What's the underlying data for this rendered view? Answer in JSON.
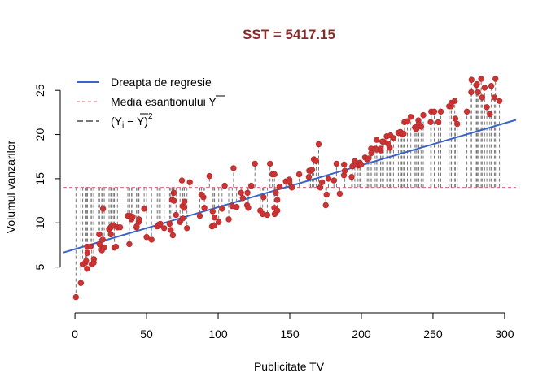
{
  "chart_data": {
    "type": "scatter",
    "title": "SST = 5417.15",
    "xlabel": "Publicitate TV",
    "ylabel": "Volumul vanzarilor",
    "xlim": [
      -8,
      308
    ],
    "ylim": [
      0,
      27.5
    ],
    "x_ticks": [
      "0",
      "50",
      "100",
      "150",
      "200",
      "250",
      "300"
    ],
    "y_ticks": [
      "5",
      "10",
      "15",
      "20",
      "25"
    ],
    "mean_y": 14.02,
    "regression": {
      "intercept": 7.03,
      "slope": 0.0475
    },
    "legend": {
      "position": "top-left",
      "entries": [
        {
          "label": "Dreapta de regresie",
          "color": "#3a64c8",
          "style": "solid"
        },
        {
          "label": "Media esantionului Y",
          "color": "#e06070",
          "style": "dashed"
        },
        {
          "label": "(Y",
          "sub": "i",
          "mid": " − Y",
          "close": ")",
          "sup": "2",
          "color": "#777777",
          "style": "longdash"
        }
      ]
    },
    "colors": {
      "points": "#cc3333",
      "regression": "#3a64c8",
      "mean": "#e06070",
      "residual": "#777777"
    },
    "x": [
      0.7,
      4.1,
      5.4,
      7.3,
      7.8,
      8.4,
      8.6,
      8.7,
      10.8,
      11.7,
      13.1,
      13.2,
      16.9,
      17.2,
      18.7,
      18.8,
      19.4,
      19.6,
      20.5,
      23.8,
      25.0,
      25.1,
      25.6,
      26.8,
      27.5,
      28.6,
      29.7,
      31.5,
      36.9,
      38.0,
      38.2,
      39.5,
      40.3,
      43.0,
      43.1,
      44.5,
      44.7,
      48.3,
      50.0,
      53.5,
      57.5,
      58.6,
      59.6,
      62.3,
      66.1,
      66.9,
      67.8,
      68.4,
      69.0,
      69.2,
      70.6,
      73.4,
      74.7,
      75.1,
      75.3,
      76.3,
      76.4,
      78.2,
      80.2,
      87.2,
      88.3,
      89.7,
      90.4,
      93.9,
      95.7,
      96.2,
      97.2,
      97.5,
      100.4,
      102.7,
      104.6,
      107.4,
      109.8,
      110.7,
      112.9,
      116.0,
      117.2,
      120.2,
      120.5,
      121.0,
      123.1,
      125.7,
      129.4,
      131.1,
      131.7,
      134.3,
      136.2,
      137.9,
      139.2,
      139.3,
      139.5,
      140.3,
      141.3,
      141.3,
      142.9,
      147.3,
      149.7,
      149.8,
      151.5,
      156.6,
      163.3,
      163.5,
      164.5,
      165.6,
      166.8,
      168.4,
      170.2,
      171.3,
      172.5,
      175.1,
      175.7,
      177.0,
      180.8,
      182.6,
      184.9,
      187.8,
      187.9,
      188.4,
      193.2,
      193.7,
      195.4,
      197.6,
      198.9,
      199.1,
      199.8,
      202.5,
      204.1,
      205.0,
      206.8,
      206.9,
      209.6,
      210.7,
      210.8,
      213.4,
      213.5,
      214.7,
      215.4,
      217.7,
      218.4,
      219.8,
      220.3,
      222.4,
      225.8,
      227.2,
      228.0,
      228.3,
      229.5,
      230.1,
      232.1,
      234.5,
      237.4,
      238.2,
      239.3,
      239.8,
      240.1,
      241.7,
      243.2,
      248.4,
      248.8,
      250.9,
      253.8,
      255.4,
      261.3,
      262.7,
      262.9,
      265.2,
      265.6,
      266.9,
      273.7,
      276.7,
      276.9,
      280.2,
      280.7,
      281.4,
      283.6,
      284.3,
      286.0,
      287.6,
      289.7,
      290.7,
      292.9,
      293.6,
      296.4
    ],
    "y": [
      1.6,
      3.2,
      5.3,
      5.5,
      5.7,
      4.8,
      7.3,
      6.6,
      7.3,
      5.3,
      5.5,
      5.9,
      8.7,
      7.6,
      7.0,
      6.9,
      8.1,
      11.6,
      7.2,
      9.3,
      9.5,
      8.7,
      9.6,
      9.7,
      7.2,
      7.3,
      9.5,
      9.5,
      10.8,
      7.6,
      10.8,
      10.4,
      10.7,
      9.5,
      9.6,
      10.1,
      10.4,
      11.6,
      8.4,
      8.1,
      9.6,
      9.7,
      9.9,
      9.4,
      9.9,
      9.2,
      12.6,
      8.6,
      13.4,
      12.5,
      10.9,
      10.1,
      14.8,
      11.9,
      10.5,
      11.7,
      12.4,
      9.4,
      14.6,
      10.8,
      13.2,
      12.9,
      11.7,
      15.3,
      9.6,
      11.3,
      9.7,
      10.6,
      10.1,
      11.6,
      14.2,
      10.4,
      11.9,
      16.2,
      11.8,
      13.4,
      12.8,
      12.0,
      13.4,
      11.7,
      14.2,
      16.7,
      11.4,
      11.0,
      12.9,
      10.9,
      16.7,
      15.5,
      11.7,
      15.5,
      11.0,
      13.4,
      12.6,
      11.4,
      14.1,
      14.7,
      14.9,
      14.6,
      14.0,
      15.5,
      15.2,
      15.9,
      15.9,
      16.0,
      17.2,
      17.0,
      18.9,
      14.0,
      14.6,
      12.0,
      13.2,
      15.0,
      14.8,
      16.7,
      13.3,
      15.4,
      16.6,
      15.9,
      15.2,
      16.4,
      17.0,
      16.5,
      16.8,
      16.6,
      16.6,
      17.4,
      17.2,
      17.3,
      18.4,
      17.9,
      18.4,
      19.4,
      18.3,
      18.2,
      18.4,
      19.2,
      19.2,
      19.8,
      19.0,
      18.5,
      19.9,
      19.6,
      20.2,
      20.3,
      20.1,
      20.0,
      20.1,
      21.4,
      21.5,
      22.0,
      20.8,
      20.6,
      21.0,
      21.6,
      21.2,
      20.9,
      22.2,
      21.4,
      22.6,
      22.6,
      21.4,
      22.6,
      23.2,
      23.2,
      23.6,
      23.8,
      21.8,
      21.2,
      22.6,
      24.8,
      26.2,
      25.6,
      25.7,
      24.8,
      26.3,
      24.2,
      25.3,
      23.1,
      22.3,
      25.5,
      24.2,
      26.3,
      23.8
    ],
    "points": [
      [
        0.7,
        1.6
      ],
      [
        4.1,
        3.2
      ],
      [
        5.4,
        5.3
      ],
      [
        7.3,
        5.5
      ],
      [
        7.8,
        5.7
      ],
      [
        8.4,
        4.8
      ],
      [
        8.6,
        7.3
      ],
      [
        8.7,
        6.6
      ],
      [
        10.8,
        7.3
      ],
      [
        11.7,
        5.3
      ],
      [
        13.1,
        5.5
      ],
      [
        13.2,
        5.9
      ],
      [
        16.9,
        8.7
      ],
      [
        17.2,
        7.6
      ],
      [
        18.7,
        7.0
      ],
      [
        18.8,
        6.9
      ],
      [
        19.4,
        8.1
      ],
      [
        19.6,
        11.6
      ],
      [
        20.5,
        7.2
      ],
      [
        23.8,
        9.3
      ],
      [
        25.0,
        9.5
      ],
      [
        25.1,
        8.7
      ],
      [
        25.6,
        9.6
      ],
      [
        26.8,
        9.7
      ],
      [
        27.5,
        7.2
      ],
      [
        28.6,
        7.3
      ],
      [
        29.7,
        9.5
      ],
      [
        31.5,
        9.5
      ],
      [
        36.9,
        10.8
      ],
      [
        38.0,
        7.6
      ],
      [
        38.2,
        10.8
      ],
      [
        39.5,
        10.4
      ],
      [
        40.3,
        10.7
      ],
      [
        43.0,
        9.5
      ],
      [
        43.1,
        9.6
      ],
      [
        44.5,
        10.1
      ],
      [
        44.7,
        10.4
      ],
      [
        48.3,
        11.6
      ],
      [
        50.0,
        8.4
      ],
      [
        53.5,
        8.1
      ],
      [
        57.5,
        9.6
      ],
      [
        58.6,
        9.7
      ],
      [
        59.6,
        9.9
      ],
      [
        62.3,
        9.4
      ],
      [
        66.1,
        9.9
      ],
      [
        66.9,
        9.2
      ],
      [
        67.8,
        12.6
      ],
      [
        68.4,
        8.6
      ],
      [
        69.0,
        13.4
      ],
      [
        69.2,
        12.5
      ],
      [
        70.6,
        10.9
      ],
      [
        73.4,
        10.1
      ],
      [
        74.7,
        14.8
      ],
      [
        75.1,
        11.9
      ],
      [
        75.3,
        10.5
      ],
      [
        76.3,
        11.7
      ],
      [
        76.4,
        12.4
      ],
      [
        78.2,
        9.4
      ],
      [
        80.2,
        14.6
      ],
      [
        87.2,
        10.8
      ],
      [
        88.3,
        13.2
      ],
      [
        89.7,
        12.9
      ],
      [
        90.4,
        11.7
      ],
      [
        93.9,
        15.3
      ],
      [
        95.7,
        9.6
      ],
      [
        96.2,
        11.3
      ],
      [
        97.2,
        9.7
      ],
      [
        97.5,
        10.6
      ],
      [
        100.4,
        10.1
      ],
      [
        102.7,
        11.6
      ],
      [
        104.6,
        14.2
      ],
      [
        107.4,
        10.4
      ],
      [
        109.8,
        11.9
      ],
      [
        110.7,
        16.2
      ],
      [
        112.9,
        11.8
      ],
      [
        116.0,
        13.4
      ],
      [
        117.2,
        12.8
      ],
      [
        120.2,
        12.0
      ],
      [
        120.5,
        13.4
      ],
      [
        121.0,
        11.7
      ],
      [
        123.1,
        14.2
      ],
      [
        125.7,
        16.7
      ],
      [
        129.4,
        11.4
      ],
      [
        131.1,
        11.0
      ],
      [
        131.7,
        12.9
      ],
      [
        134.3,
        10.9
      ],
      [
        136.2,
        16.7
      ],
      [
        137.9,
        15.5
      ],
      [
        139.2,
        11.7
      ],
      [
        139.3,
        15.5
      ],
      [
        139.5,
        11.0
      ],
      [
        140.3,
        13.4
      ],
      [
        141.3,
        12.6
      ],
      [
        141.3,
        11.4
      ],
      [
        142.9,
        14.1
      ],
      [
        147.3,
        14.7
      ],
      [
        149.7,
        14.9
      ],
      [
        149.8,
        14.6
      ],
      [
        151.5,
        14.0
      ],
      [
        156.6,
        15.5
      ],
      [
        163.3,
        15.2
      ],
      [
        163.5,
        15.9
      ],
      [
        164.5,
        15.9
      ],
      [
        165.6,
        16.0
      ],
      [
        166.8,
        17.2
      ],
      [
        168.4,
        17.0
      ],
      [
        170.2,
        18.9
      ],
      [
        171.3,
        14.0
      ],
      [
        172.5,
        14.6
      ],
      [
        175.1,
        12.0
      ],
      [
        175.7,
        13.2
      ],
      [
        177.0,
        15.0
      ],
      [
        180.8,
        14.8
      ],
      [
        182.6,
        16.7
      ],
      [
        184.9,
        13.3
      ],
      [
        187.8,
        15.4
      ],
      [
        187.9,
        16.6
      ],
      [
        188.4,
        15.9
      ],
      [
        193.2,
        15.2
      ],
      [
        193.7,
        16.4
      ],
      [
        195.4,
        17.0
      ],
      [
        197.6,
        16.5
      ],
      [
        198.9,
        16.8
      ],
      [
        199.1,
        16.6
      ],
      [
        199.8,
        16.6
      ],
      [
        202.5,
        17.4
      ],
      [
        204.1,
        17.2
      ],
      [
        205.0,
        17.3
      ],
      [
        206.8,
        18.4
      ],
      [
        206.9,
        17.9
      ],
      [
        209.6,
        18.4
      ],
      [
        210.7,
        19.4
      ],
      [
        210.8,
        18.3
      ],
      [
        213.4,
        18.2
      ],
      [
        213.5,
        18.4
      ],
      [
        214.7,
        19.2
      ],
      [
        215.4,
        19.2
      ],
      [
        217.7,
        19.8
      ],
      [
        218.4,
        19.0
      ],
      [
        219.8,
        18.5
      ],
      [
        220.3,
        19.9
      ],
      [
        222.4,
        19.6
      ],
      [
        225.8,
        20.2
      ],
      [
        227.2,
        20.3
      ],
      [
        228.0,
        20.1
      ],
      [
        228.3,
        20.0
      ],
      [
        229.5,
        20.1
      ],
      [
        230.1,
        21.4
      ],
      [
        232.1,
        21.5
      ],
      [
        234.5,
        22.0
      ],
      [
        237.4,
        20.8
      ],
      [
        238.2,
        20.6
      ],
      [
        239.3,
        21.0
      ],
      [
        239.8,
        21.6
      ],
      [
        240.1,
        21.2
      ],
      [
        241.7,
        20.9
      ],
      [
        243.2,
        22.2
      ],
      [
        248.4,
        21.4
      ],
      [
        248.8,
        22.6
      ],
      [
        250.9,
        22.6
      ],
      [
        253.8,
        21.4
      ],
      [
        255.4,
        22.6
      ],
      [
        261.3,
        23.2
      ],
      [
        262.7,
        23.2
      ],
      [
        262.9,
        23.6
      ],
      [
        265.2,
        23.8
      ],
      [
        265.6,
        21.8
      ],
      [
        266.9,
        21.2
      ],
      [
        273.7,
        22.6
      ],
      [
        276.7,
        24.8
      ],
      [
        276.9,
        26.2
      ],
      [
        280.2,
        25.6
      ],
      [
        280.7,
        25.7
      ],
      [
        281.4,
        24.8
      ],
      [
        283.6,
        26.3
      ],
      [
        284.3,
        24.2
      ],
      [
        286.0,
        25.3
      ],
      [
        287.6,
        23.1
      ],
      [
        289.7,
        22.3
      ],
      [
        290.7,
        25.5
      ],
      [
        292.9,
        24.2
      ],
      [
        293.6,
        26.3
      ],
      [
        296.4,
        23.8
      ]
    ]
  }
}
